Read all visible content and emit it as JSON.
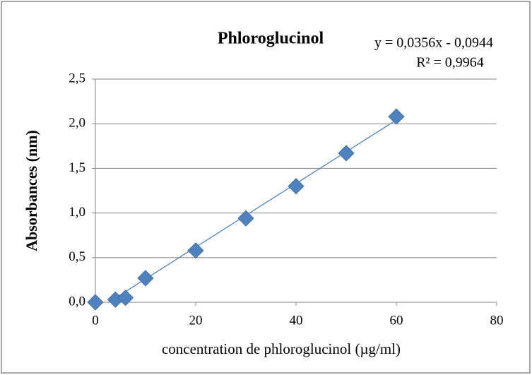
{
  "chart_data": {
    "type": "scatter",
    "title": "Phloroglucinol",
    "x_label": "concentration de phloroglucinol (µg/ml)",
    "y_label": "Absorbances (nm)",
    "series": [
      {
        "name": "Phloroglucinol",
        "color": "#4f81bd",
        "x": [
          0,
          4,
          6,
          10,
          20,
          30,
          40,
          50,
          60
        ],
        "values": [
          0,
          0.03,
          0.05,
          0.27,
          0.58,
          0.94,
          1.3,
          1.67,
          2.08
        ]
      }
    ],
    "trendline": {
      "slope": 0.0356,
      "intercept": -0.0944,
      "color": "#4f81bd",
      "equation": "y = 0,0356x - 0,0944",
      "r2_label": "R² = 0,9964"
    },
    "xlim": [
      0,
      80
    ],
    "xticks": [
      0,
      20,
      40,
      60,
      80
    ],
    "ylim": [
      0,
      2.5
    ],
    "yticks": [
      {
        "value": 0,
        "label": "0,0"
      },
      {
        "value": 0.5,
        "label": "0,5"
      },
      {
        "value": 1,
        "label": "1,0"
      },
      {
        "value": 1.5,
        "label": "1,5"
      },
      {
        "value": 2,
        "label": "2,0"
      },
      {
        "value": 2.5,
        "label": "2,5"
      }
    ],
    "grid": true
  }
}
